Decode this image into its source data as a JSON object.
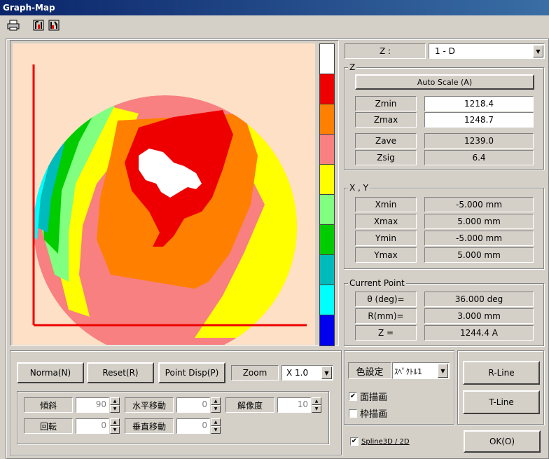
{
  "window": {
    "title": "Graph-Map"
  },
  "toolbar": {
    "icons": [
      "printer-icon",
      "tool-icon",
      "tool-settings-icon"
    ]
  },
  "colorbar": [
    "#ffffff",
    "#ee0000",
    "#ff7f00",
    "#f88080",
    "#ffff00",
    "#80ff80",
    "#00cc00",
    "#00bbbb",
    "#00ffff",
    "#0000ee"
  ],
  "z_select": {
    "label": "Z :",
    "value": "1 - D"
  },
  "z_group": {
    "title": "Z",
    "auto_scale": "Auto Scale (A)",
    "zmin_label": "Zmin",
    "zmin": "1218.4",
    "zmax_label": "Zmax",
    "zmax": "1248.7",
    "zave_label": "Zave",
    "zave": "1239.0",
    "zsig_label": "Zsig",
    "zsig": "6.4"
  },
  "xy_group": {
    "title": "X , Y",
    "xmin_label": "Xmin",
    "xmin": "-5.000 mm",
    "xmax_label": "Xmax",
    "xmax": "5.000 mm",
    "ymin_label": "Ymin",
    "ymin": "-5.000 mm",
    "ymax_label": "Ymax",
    "ymax": "5.000 mm"
  },
  "current_point": {
    "title": "Current Point",
    "theta_label": "θ (deg)=",
    "theta": "36.000 deg",
    "r_label": "R(mm)=",
    "r": "3.000 mm",
    "z_label": "Z =",
    "z": "1244.4 A"
  },
  "controls": {
    "normal": "Norma(N)",
    "reset": "Reset(R)",
    "point_disp": "Point Disp(P)",
    "zoom_label": "Zoom",
    "zoom_value": "X 1.0",
    "tilt_label": "傾斜",
    "tilt": "90",
    "hmove_label": "水平移動",
    "hmove": "0",
    "resolution_label": "解像度",
    "resolution": "10",
    "rotate_label": "回転",
    "rotate": "0",
    "vmove_label": "垂直移動",
    "vmove": "0"
  },
  "color_settings": {
    "label": "色設定",
    "value": "ｽﾍﾟｸﾄﾙ1",
    "surface_draw": "面描画",
    "surface_checked": true,
    "frame_draw": "枠描画",
    "frame_checked": false,
    "spline": "Spline3D / 2D",
    "spline_checked": true
  },
  "buttons": {
    "r_line": "R-Line",
    "t_line": "T-Line",
    "ok": "OK(O)"
  },
  "map_colors": {
    "background": "#fde0c6",
    "axis": "#ee0000",
    "white": "#ffffff",
    "red": "#ee0000",
    "orange": "#ff7f00",
    "pink": "#f88080",
    "yellow": "#ffff00",
    "lightgreen": "#80ff80",
    "green": "#00cc00",
    "teal": "#00bbbb",
    "cyan": "#00ffff",
    "blue": "#0000ee"
  }
}
